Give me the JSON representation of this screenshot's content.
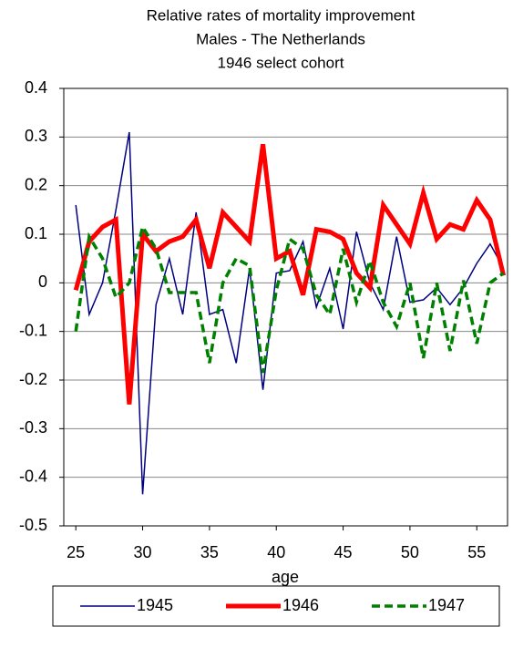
{
  "chart_data": {
    "type": "line",
    "title": [
      "Relative rates of mortality improvement",
      "Males - The Netherlands",
      "1946 select cohort"
    ],
    "x_label": "age",
    "x": [
      25,
      26,
      27,
      28,
      29,
      30,
      31,
      32,
      33,
      34,
      35,
      36,
      37,
      38,
      39,
      40,
      41,
      42,
      43,
      44,
      45,
      46,
      47,
      48,
      49,
      50,
      51,
      52,
      53,
      54,
      55,
      56,
      57
    ],
    "series": [
      {
        "name": "1945",
        "color": "#000080",
        "width": 1.5,
        "dash": "none",
        "values": [
          0.16,
          -0.065,
          0.0,
          0.15,
          0.31,
          -0.435,
          -0.045,
          0.05,
          -0.065,
          0.145,
          -0.065,
          -0.055,
          -0.165,
          0.03,
          -0.22,
          0.02,
          0.025,
          0.085,
          -0.05,
          0.03,
          -0.095,
          0.105,
          0.0,
          -0.055,
          0.095,
          -0.04,
          -0.035,
          -0.01,
          -0.045,
          -0.01,
          0.04,
          0.08,
          0.03
        ]
      },
      {
        "name": "1946",
        "color": "#ff0000",
        "width": 5,
        "dash": "none",
        "values": [
          -0.015,
          0.085,
          0.115,
          0.13,
          -0.25,
          0.1,
          0.065,
          0.085,
          0.095,
          0.13,
          0.03,
          0.145,
          0.115,
          0.085,
          0.285,
          0.05,
          0.065,
          -0.025,
          0.11,
          0.105,
          0.09,
          0.02,
          -0.01,
          0.16,
          0.12,
          0.08,
          0.185,
          0.09,
          0.12,
          0.11,
          0.17,
          0.13,
          0.015
        ]
      },
      {
        "name": "1947",
        "color": "#008000",
        "width": 3.5,
        "dash": "9,5",
        "values": [
          -0.1,
          0.095,
          0.05,
          -0.03,
          0.0,
          0.115,
          0.07,
          -0.02,
          -0.02,
          -0.02,
          -0.165,
          0.0,
          0.05,
          0.035,
          -0.185,
          -0.015,
          0.09,
          0.07,
          -0.025,
          -0.065,
          0.07,
          -0.04,
          0.045,
          -0.04,
          -0.09,
          0.0,
          -0.155,
          0.0,
          -0.14,
          0.005,
          -0.125,
          0.0,
          0.02
        ]
      }
    ],
    "xlim": [
      24.1,
      57.3
    ],
    "xticks": [
      25,
      30,
      35,
      40,
      45,
      50,
      55
    ],
    "ylim": [
      -0.5,
      0.4
    ],
    "yticks": [
      -0.5,
      -0.4,
      -0.3,
      -0.2,
      -0.1,
      0,
      0.1,
      0.2,
      0.3,
      0.4
    ],
    "grid": true,
    "legend": "bottom"
  }
}
